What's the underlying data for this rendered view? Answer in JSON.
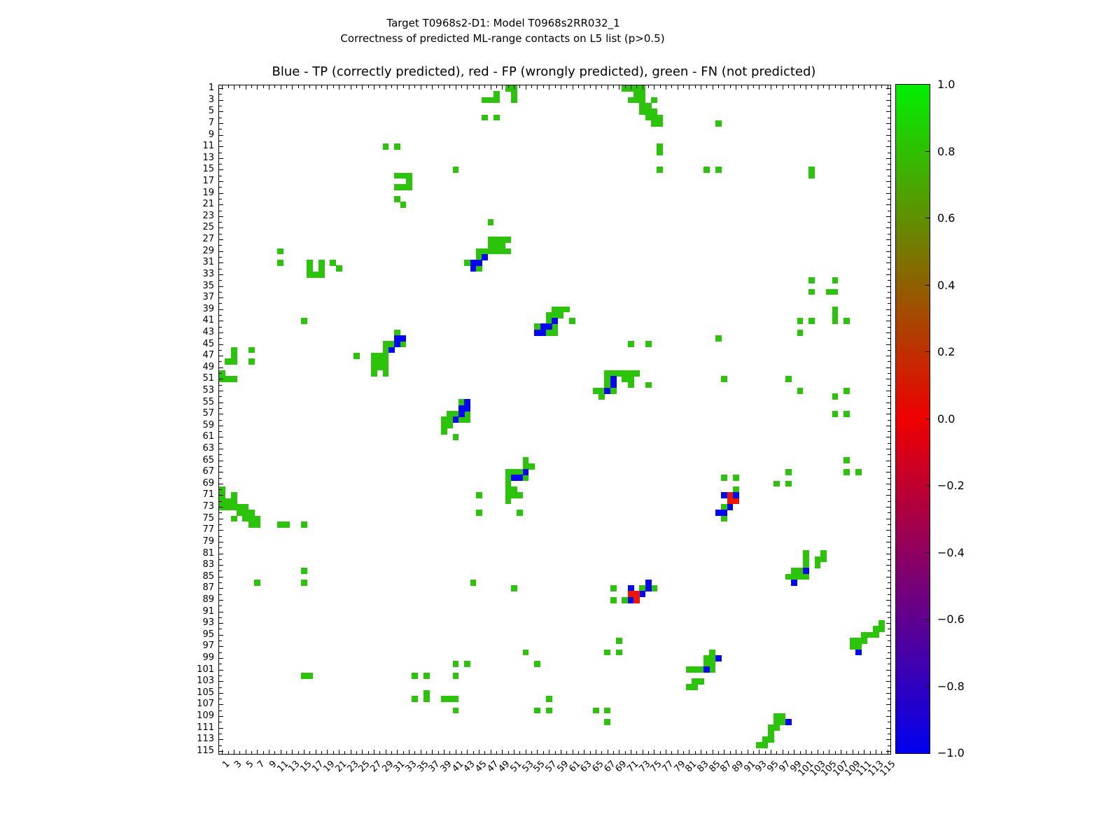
{
  "figure": {
    "suptitle_line1": "Target T0968s2-D1: Model T0968s2RR032_1",
    "suptitle_line2": "Correctness of predicted ML-range contacts on L5 list (p>0.5)"
  },
  "chart_data": {
    "type": "heatmap",
    "title": "Blue - TP (correctly predicted), red - FP (wrongly predicted), green - FN (not predicted)",
    "suptitle": "Target T0968s2-D1: Model T0968s2RR032_1 | Correctness of predicted ML-range contacts on L5 list (p>0.5)",
    "legend": {
      "blue": "TP (correctly predicted)",
      "red": "FP (wrongly predicted)",
      "green": "FN (not predicted)"
    },
    "grid_size": 115,
    "x_range": [
      1,
      115
    ],
    "y_range": [
      1,
      115
    ],
    "y_axis_inverted": true,
    "x_tick_labels": [
      "1",
      "3",
      "5",
      "7",
      "9",
      "11",
      "13",
      "15",
      "17",
      "19",
      "21",
      "23",
      "25",
      "27",
      "29",
      "31",
      "33",
      "35",
      "37",
      "39",
      "41",
      "43",
      "45",
      "47",
      "49",
      "51",
      "53",
      "55",
      "57",
      "59",
      "61",
      "63",
      "65",
      "67",
      "69",
      "71",
      "73",
      "75",
      "77",
      "79",
      "81",
      "83",
      "85",
      "87",
      "89",
      "91",
      "93",
      "95",
      "97",
      "99",
      "101",
      "103",
      "105",
      "107",
      "109",
      "111",
      "113",
      "115"
    ],
    "y_tick_labels": [
      "1",
      "3",
      "5",
      "7",
      "9",
      "11",
      "13",
      "15",
      "17",
      "19",
      "21",
      "23",
      "25",
      "27",
      "29",
      "31",
      "33",
      "35",
      "37",
      "39",
      "41",
      "43",
      "45",
      "47",
      "49",
      "51",
      "53",
      "55",
      "57",
      "59",
      "61",
      "63",
      "65",
      "67",
      "69",
      "71",
      "73",
      "75",
      "77",
      "79",
      "81",
      "83",
      "85",
      "87",
      "89",
      "91",
      "93",
      "95",
      "97",
      "99",
      "101",
      "103",
      "105",
      "107",
      "109",
      "111",
      "113",
      "115"
    ],
    "colors": {
      "green": "#2cc40b",
      "blue": "#0008f0",
      "red": "#ee1505"
    },
    "colorbar": {
      "min": -1.0,
      "max": 1.0,
      "tick_labels": [
        "1.0",
        "0.8",
        "0.6",
        "0.4",
        "0.2",
        "0.0",
        "−0.2",
        "−0.4",
        "−0.6",
        "−0.8",
        "−1.0"
      ],
      "gradient_top_to_bottom": [
        "#00ef00",
        "#ef0000",
        "#0000ef"
      ]
    },
    "cells": {
      "green": [
        [
          70,
          1
        ],
        [
          71,
          1
        ],
        [
          72,
          1
        ],
        [
          73,
          1
        ],
        [
          72,
          2
        ],
        [
          73,
          2
        ],
        [
          71,
          3
        ],
        [
          72,
          3
        ],
        [
          73,
          3
        ],
        [
          75,
          3
        ],
        [
          73,
          4
        ],
        [
          74,
          4
        ],
        [
          73,
          5
        ],
        [
          74,
          5
        ],
        [
          75,
          5
        ],
        [
          74,
          6
        ],
        [
          75,
          6
        ],
        [
          76,
          6
        ],
        [
          75,
          7
        ],
        [
          76,
          7
        ],
        [
          76,
          11
        ],
        [
          76,
          12
        ],
        [
          76,
          15
        ],
        [
          1,
          70
        ],
        [
          1,
          71
        ],
        [
          1,
          72
        ],
        [
          3,
          71
        ],
        [
          2,
          72
        ],
        [
          3,
          72
        ],
        [
          1,
          73
        ],
        [
          2,
          73
        ],
        [
          3,
          73
        ],
        [
          4,
          73
        ],
        [
          5,
          73
        ],
        [
          4,
          74
        ],
        [
          5,
          74
        ],
        [
          6,
          74
        ],
        [
          3,
          75
        ],
        [
          5,
          75
        ],
        [
          6,
          75
        ],
        [
          7,
          75
        ],
        [
          6,
          76
        ],
        [
          7,
          76
        ],
        [
          11,
          76
        ],
        [
          12,
          76
        ],
        [
          15,
          76
        ],
        [
          46,
          3
        ],
        [
          47,
          3
        ],
        [
          48,
          3
        ],
        [
          48,
          2
        ],
        [
          50,
          1
        ],
        [
          51,
          1
        ],
        [
          51,
          2
        ],
        [
          51,
          3
        ],
        [
          46,
          6
        ],
        [
          48,
          6
        ],
        [
          3,
          46
        ],
        [
          3,
          47
        ],
        [
          3,
          48
        ],
        [
          2,
          48
        ],
        [
          1,
          50
        ],
        [
          1,
          51
        ],
        [
          2,
          51
        ],
        [
          3,
          51
        ],
        [
          6,
          46
        ],
        [
          6,
          48
        ],
        [
          16,
          31
        ],
        [
          16,
          32
        ],
        [
          16,
          33
        ],
        [
          17,
          33
        ],
        [
          18,
          31
        ],
        [
          18,
          32
        ],
        [
          18,
          33
        ],
        [
          20,
          31
        ],
        [
          21,
          32
        ],
        [
          31,
          16
        ],
        [
          32,
          16
        ],
        [
          33,
          16
        ],
        [
          33,
          17
        ],
        [
          31,
          18
        ],
        [
          32,
          18
        ],
        [
          33,
          18
        ],
        [
          31,
          20
        ],
        [
          32,
          21
        ],
        [
          31,
          43
        ],
        [
          29,
          45
        ],
        [
          30,
          45
        ],
        [
          32,
          45
        ],
        [
          29,
          46
        ],
        [
          24,
          47
        ],
        [
          27,
          47
        ],
        [
          28,
          47
        ],
        [
          29,
          47
        ],
        [
          27,
          48
        ],
        [
          28,
          48
        ],
        [
          29,
          48
        ],
        [
          27,
          49
        ],
        [
          28,
          49
        ],
        [
          29,
          49
        ],
        [
          27,
          50
        ],
        [
          29,
          50
        ],
        [
          43,
          31
        ],
        [
          45,
          29
        ],
        [
          45,
          30
        ],
        [
          45,
          32
        ],
        [
          46,
          29
        ],
        [
          47,
          24
        ],
        [
          47,
          27
        ],
        [
          47,
          28
        ],
        [
          47,
          29
        ],
        [
          48,
          27
        ],
        [
          48,
          28
        ],
        [
          48,
          29
        ],
        [
          49,
          27
        ],
        [
          49,
          28
        ],
        [
          49,
          29
        ],
        [
          50,
          27
        ],
        [
          50,
          29
        ],
        [
          42,
          55
        ],
        [
          40,
          57
        ],
        [
          41,
          57
        ],
        [
          43,
          57
        ],
        [
          39,
          58
        ],
        [
          40,
          58
        ],
        [
          42,
          58
        ],
        [
          43,
          58
        ],
        [
          39,
          59
        ],
        [
          40,
          59
        ],
        [
          39,
          60
        ],
        [
          41,
          61
        ],
        [
          55,
          42
        ],
        [
          57,
          40
        ],
        [
          57,
          41
        ],
        [
          57,
          43
        ],
        [
          58,
          39
        ],
        [
          58,
          40
        ],
        [
          58,
          42
        ],
        [
          58,
          43
        ],
        [
          59,
          39
        ],
        [
          59,
          40
        ],
        [
          60,
          39
        ],
        [
          61,
          41
        ],
        [
          53,
          65
        ],
        [
          53,
          66
        ],
        [
          54,
          66
        ],
        [
          50,
          67
        ],
        [
          51,
          67
        ],
        [
          52,
          67
        ],
        [
          50,
          68
        ],
        [
          53,
          68
        ],
        [
          50,
          69
        ],
        [
          50,
          70
        ],
        [
          51,
          70
        ],
        [
          50,
          71
        ],
        [
          51,
          71
        ],
        [
          52,
          71
        ],
        [
          50,
          72
        ],
        [
          52,
          74
        ],
        [
          65,
          53
        ],
        [
          66,
          53
        ],
        [
          66,
          54
        ],
        [
          67,
          50
        ],
        [
          67,
          51
        ],
        [
          67,
          52
        ],
        [
          68,
          50
        ],
        [
          68,
          53
        ],
        [
          69,
          50
        ],
        [
          70,
          50
        ],
        [
          70,
          51
        ],
        [
          71,
          50
        ],
        [
          71,
          51
        ],
        [
          71,
          52
        ],
        [
          72,
          50
        ],
        [
          74,
          52
        ],
        [
          87,
          68
        ],
        [
          89,
          68
        ],
        [
          89,
          70
        ],
        [
          87,
          73
        ],
        [
          87,
          75
        ],
        [
          68,
          87
        ],
        [
          68,
          89
        ],
        [
          70,
          89
        ],
        [
          73,
          87
        ],
        [
          75,
          87
        ],
        [
          101,
          81
        ],
        [
          104,
          81
        ],
        [
          101,
          82
        ],
        [
          103,
          82
        ],
        [
          104,
          82
        ],
        [
          101,
          83
        ],
        [
          103,
          83
        ],
        [
          99,
          84
        ],
        [
          100,
          84
        ],
        [
          98,
          85
        ],
        [
          99,
          85
        ],
        [
          100,
          85
        ],
        [
          101,
          85
        ],
        [
          81,
          101
        ],
        [
          81,
          104
        ],
        [
          82,
          101
        ],
        [
          82,
          103
        ],
        [
          82,
          104
        ],
        [
          83,
          101
        ],
        [
          83,
          103
        ],
        [
          84,
          99
        ],
        [
          84,
          100
        ],
        [
          85,
          98
        ],
        [
          85,
          99
        ],
        [
          85,
          100
        ],
        [
          85,
          101
        ],
        [
          109,
          96
        ],
        [
          109,
          97
        ],
        [
          110,
          96
        ],
        [
          110,
          97
        ],
        [
          111,
          95
        ],
        [
          111,
          96
        ],
        [
          112,
          95
        ],
        [
          113,
          94
        ],
        [
          113,
          95
        ],
        [
          114,
          93
        ],
        [
          114,
          94
        ],
        [
          96,
          109
        ],
        [
          97,
          109
        ],
        [
          96,
          110
        ],
        [
          97,
          110
        ],
        [
          95,
          111
        ],
        [
          96,
          111
        ],
        [
          95,
          112
        ],
        [
          94,
          113
        ],
        [
          95,
          113
        ],
        [
          93,
          114
        ],
        [
          94,
          114
        ],
        [
          29,
          11
        ],
        [
          31,
          11
        ],
        [
          11,
          29
        ],
        [
          11,
          31
        ],
        [
          41,
          15
        ],
        [
          15,
          41
        ],
        [
          86,
          7
        ],
        [
          7,
          86
        ],
        [
          84,
          15
        ],
        [
          15,
          84
        ],
        [
          86,
          15
        ],
        [
          15,
          86
        ],
        [
          102,
          15
        ],
        [
          102,
          16
        ],
        [
          15,
          102
        ],
        [
          16,
          102
        ],
        [
          102,
          34
        ],
        [
          34,
          102
        ],
        [
          106,
          34
        ],
        [
          34,
          106
        ],
        [
          102,
          36
        ],
        [
          36,
          102
        ],
        [
          105,
          36
        ],
        [
          36,
          105
        ],
        [
          106,
          36
        ],
        [
          36,
          106
        ],
        [
          106,
          39
        ],
        [
          39,
          106
        ],
        [
          106,
          40
        ],
        [
          40,
          106
        ],
        [
          106,
          41
        ],
        [
          41,
          106
        ],
        [
          100,
          41
        ],
        [
          41,
          100
        ],
        [
          102,
          41
        ],
        [
          41,
          102
        ],
        [
          108,
          41
        ],
        [
          41,
          108
        ],
        [
          100,
          43
        ],
        [
          43,
          100
        ],
        [
          86,
          44
        ],
        [
          44,
          86
        ],
        [
          71,
          45
        ],
        [
          45,
          71
        ],
        [
          74,
          45
        ],
        [
          45,
          74
        ],
        [
          87,
          51
        ],
        [
          51,
          87
        ],
        [
          98,
          51
        ],
        [
          53,
          98
        ],
        [
          100,
          53
        ],
        [
          55,
          100
        ],
        [
          106,
          54
        ],
        [
          108,
          53
        ],
        [
          106,
          57
        ],
        [
          57,
          106
        ],
        [
          108,
          57
        ],
        [
          55,
          108
        ],
        [
          57,
          108
        ],
        [
          108,
          65
        ],
        [
          65,
          108
        ],
        [
          108,
          67
        ],
        [
          67,
          108
        ],
        [
          110,
          67
        ],
        [
          67,
          110
        ],
        [
          96,
          69
        ],
        [
          69,
          96
        ],
        [
          98,
          67
        ],
        [
          67,
          98
        ],
        [
          98,
          69
        ],
        [
          69,
          98
        ]
      ],
      "blue": [
        [
          44,
          31
        ],
        [
          44,
          32
        ],
        [
          45,
          31
        ],
        [
          46,
          30
        ],
        [
          31,
          44
        ],
        [
          32,
          44
        ],
        [
          31,
          45
        ],
        [
          30,
          46
        ],
        [
          55,
          43
        ],
        [
          56,
          42
        ],
        [
          56,
          43
        ],
        [
          57,
          42
        ],
        [
          58,
          41
        ],
        [
          43,
          55
        ],
        [
          42,
          56
        ],
        [
          43,
          56
        ],
        [
          42,
          57
        ],
        [
          41,
          58
        ],
        [
          67,
          53
        ],
        [
          68,
          51
        ],
        [
          68,
          52
        ],
        [
          53,
          67
        ],
        [
          51,
          68
        ],
        [
          52,
          68
        ],
        [
          87,
          71
        ],
        [
          89,
          71
        ],
        [
          88,
          73
        ],
        [
          86,
          74
        ],
        [
          87,
          74
        ],
        [
          71,
          87
        ],
        [
          71,
          89
        ],
        [
          73,
          88
        ],
        [
          74,
          86
        ],
        [
          74,
          87
        ],
        [
          101,
          84
        ],
        [
          99,
          86
        ],
        [
          84,
          101
        ],
        [
          86,
          99
        ],
        [
          110,
          98
        ],
        [
          98,
          110
        ]
      ],
      "red": [
        [
          88,
          71
        ],
        [
          88,
          72
        ],
        [
          89,
          72
        ],
        [
          71,
          88
        ],
        [
          72,
          88
        ],
        [
          72,
          89
        ]
      ]
    }
  }
}
